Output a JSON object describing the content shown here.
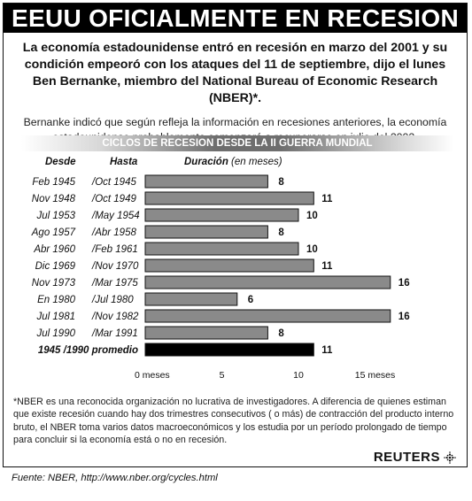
{
  "headline": "EEUU OFICIALMENTE EN RECESION",
  "lead": "La economía estadounidense entró en recesión en marzo del 2001 y su condición empeoró con los ataques del 11 de septiembre, dijo el lunes Ben Bernanke, miembro del National Bureau of Economic Research (NBER)*.",
  "sublead": "Bernanke indicó que según refleja la información en recesiones anteriores, la economía estadounidense probablemente comenzará a recuperarse en julio del 2002.",
  "columns": {
    "desde": "Desde",
    "hasta": "Hasta",
    "duracion": "Duración",
    "duracion_unit": "(en meses)"
  },
  "chart_data": {
    "type": "bar",
    "orientation": "horizontal",
    "title": "CICLOS DE RECESION DESDE LA II GUERRA MUNDIAL",
    "rows": [
      {
        "desde": "Feb 1945",
        "hasta": "/Oct 1945",
        "value": 8
      },
      {
        "desde": "Nov 1948",
        "hasta": "/Oct 1949",
        "value": 11
      },
      {
        "desde": "Jul 1953",
        "hasta": "/May 1954",
        "value": 10
      },
      {
        "desde": "Ago 1957",
        "hasta": "/Abr 1958",
        "value": 8
      },
      {
        "desde": "Abr 1960",
        "hasta": "/Feb 1961",
        "value": 10
      },
      {
        "desde": "Dic 1969",
        "hasta": "/Nov 1970",
        "value": 11
      },
      {
        "desde": "Nov 1973",
        "hasta": "/Mar 1975",
        "value": 16
      },
      {
        "desde": "En 1980",
        "hasta": "/Jul 1980",
        "value": 6
      },
      {
        "desde": "Jul 1981",
        "hasta": "/Nov 1982",
        "value": 16
      },
      {
        "desde": "Jul 1990",
        "hasta": "/Mar 1991",
        "value": 8
      }
    ],
    "average": {
      "label": "1945 /1990 promedio",
      "value": 11
    },
    "xlim": [
      0,
      16
    ],
    "ticks": [
      {
        "value": 0,
        "label": "0 meses"
      },
      {
        "value": 5,
        "label": "5"
      },
      {
        "value": 10,
        "label": "10"
      },
      {
        "value": 15,
        "label": "15 meses"
      }
    ],
    "colors": {
      "bar": "#8a8a8a",
      "average_bar": "#000000",
      "outline": "#111111"
    },
    "grid": false,
    "legend": "none"
  },
  "footnote": "*NBER es una reconocida organización no lucrativa de investigadores. A diferencia de quienes estiman que existe recesión cuando hay dos trimestres consecutivos ( o más) de contracción del producto interno bruto, el NBER toma varios datos macroeconómicos y los estudia por un período prolongado de tiempo para concluir si la economía está o no en recesión.",
  "brand": {
    "name": "REUTERS",
    "icon": "reuters-dot-logo-icon"
  },
  "source": "Fuente: NBER, http://www.nber.org/cycles.html"
}
